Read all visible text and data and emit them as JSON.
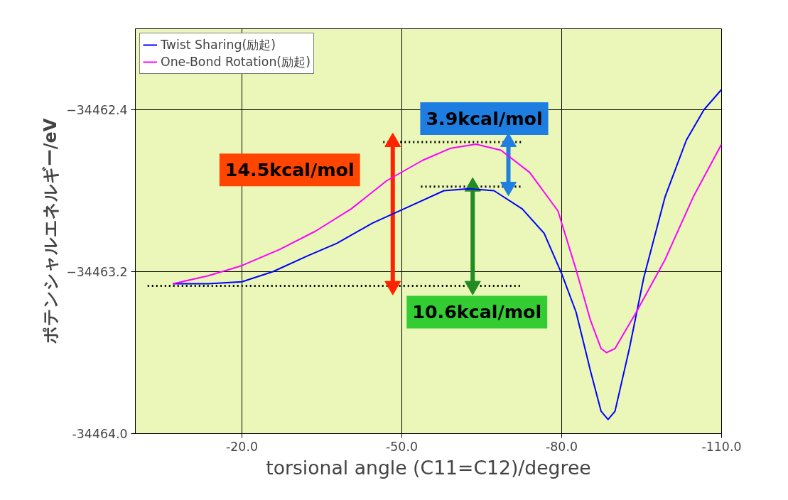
{
  "chart_data": {
    "type": "line",
    "xlabel": "torsional angle (C11=C12)/degree",
    "ylabel": "ポテンシャルエネルギー/eV",
    "xlim": [
      0,
      -110
    ],
    "ylim": [
      -34464.0,
      -34462.0
    ],
    "xticks": [
      {
        "value": -20,
        "label": "-20.0"
      },
      {
        "value": -50,
        "label": "-50.0"
      },
      {
        "value": -80,
        "label": "-80.0"
      },
      {
        "value": -110,
        "label": "-110.0"
      }
    ],
    "yticks": [
      {
        "value": -34464.0,
        "label": "-34464.0"
      },
      -34463.2,
      -34462.4
    ],
    "grid": true,
    "legend": "top left",
    "line_style": "solid",
    "marker": "none",
    "series": [
      {
        "name": "Twist Sharing(励起)",
        "color": "#0000ff",
        "x": [
          -7.0,
          -13.7,
          -20,
          -25.8,
          -32.5,
          -37.8,
          -44.5,
          -51.2,
          -57.9,
          -62.6,
          -67.3,
          -72.6,
          -76.7,
          -80,
          -82.7,
          -85.4,
          -87.4,
          -88.7,
          -90.0,
          -92.7,
          -95.4,
          -99.4,
          -103.4,
          -106.7,
          -110
        ],
        "values": [
          -34463.26,
          -34463.26,
          -34463.25,
          -34463.2,
          -34463.12,
          -34463.06,
          -34462.96,
          -34462.88,
          -34462.8,
          -34462.79,
          -34462.8,
          -34462.89,
          -34463.01,
          -34463.21,
          -34463.4,
          -34463.69,
          -34463.89,
          -34463.93,
          -34463.89,
          -34463.58,
          -34463.23,
          -34462.83,
          -34462.55,
          -34462.4,
          -34462.3
        ]
      },
      {
        "name": "One-Bond Rotation(励起)",
        "color": "#ff00ff",
        "x": [
          -7.0,
          -13.7,
          -20,
          -27.1,
          -33.8,
          -40.5,
          -47.2,
          -53.9,
          -59.2,
          -63.9,
          -68.6,
          -74.0,
          -79.3,
          -82.7,
          -85.4,
          -87.4,
          -88.4,
          -90.0,
          -94.0,
          -99.4,
          -104.7,
          -110
        ],
        "values": [
          -34463.26,
          -34463.22,
          -34463.17,
          -34463.09,
          -34463.0,
          -34462.89,
          -34462.75,
          -34462.65,
          -34462.59,
          -34462.57,
          -34462.6,
          -34462.71,
          -34462.9,
          -34463.19,
          -34463.44,
          -34463.58,
          -34463.6,
          -34463.58,
          -34463.4,
          -34463.14,
          -34462.83,
          -34462.57
        ]
      },
      {
        "color": "#000000",
        "line_style": "dotted",
        "x": [
          -2.3,
          -72.6
        ],
        "values": [
          -34463.27,
          -34463.27
        ]
      },
      {
        "color": "#000000",
        "line_style": "dotted",
        "x": [
          -46.5,
          -72.6
        ],
        "values": [
          -34462.56,
          -34462.56
        ]
      },
      {
        "color": "#000000",
        "line_style": "dotted",
        "x": [
          -53.6,
          -72.6
        ],
        "values": [
          -34462.78,
          -34462.78
        ]
      },
      {
        "color": "#ff2200",
        "marker": "triangle",
        "x": [
          -48.3,
          -48.3
        ],
        "values": [
          -34463.27,
          -34462.56
        ]
      },
      {
        "color": "#2080e0",
        "marker": "triangle",
        "x": [
          -70.0,
          -70.0
        ],
        "values": [
          -34462.78,
          -34462.56
        ]
      },
      {
        "color": "#228b22",
        "marker": "triangle",
        "x": [
          -63.3,
          -63.3
        ],
        "values": [
          -34463.27,
          -34462.78
        ]
      }
    ],
    "annotations": [
      "14.5kcal/mol",
      "3.9kcal/mol",
      "10.6kcal/mol"
    ]
  }
}
